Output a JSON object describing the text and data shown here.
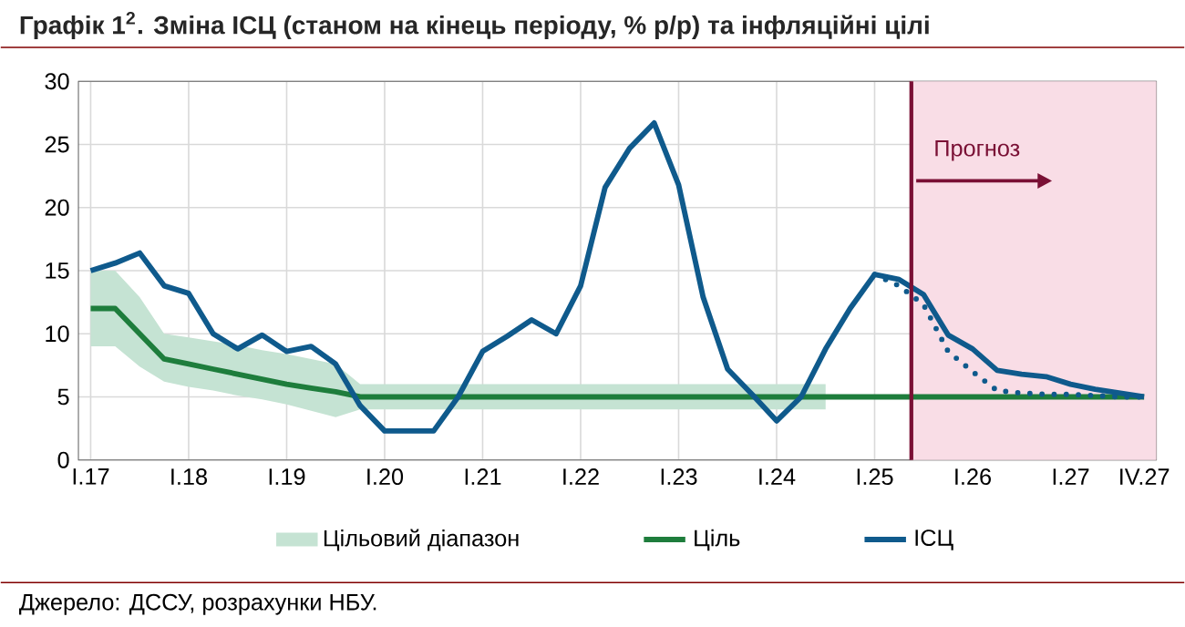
{
  "chart_data": {
    "type": "line",
    "title": "Графік 1$^{2}$. Зміна ІСЦ (станом на кінець періоду, % р/р) та інфляційні цілі",
    "categories": [
      "I.17",
      null,
      null,
      null,
      "I.18",
      null,
      null,
      null,
      "I.19",
      null,
      null,
      null,
      "I.20",
      null,
      null,
      null,
      "I.21",
      null,
      null,
      null,
      "I.22",
      null,
      null,
      null,
      "I.23",
      null,
      null,
      null,
      "I.24",
      null,
      null,
      null,
      "I.25",
      null,
      null,
      null,
      "I.26",
      null,
      null,
      null,
      "I.27",
      null,
      null,
      "IV.27"
    ],
    "ylim": [
      0,
      30
    ],
    "yticks": [
      0,
      5,
      10,
      15,
      20,
      25,
      30
    ],
    "grid": true,
    "legend": "bottom",
    "series": [
      {
        "name": "Ціль",
        "color": "#1e7d3c",
        "values": [
          12,
          12,
          10,
          8,
          7.6,
          7.2,
          6.8,
          6.4,
          6.0,
          5.7,
          5.4,
          5,
          5,
          5,
          5,
          5,
          5,
          5,
          5,
          5,
          5,
          5,
          5,
          5,
          5,
          5,
          5,
          5,
          5,
          5,
          5,
          5,
          5,
          5,
          5,
          5,
          5,
          5,
          5,
          5,
          5,
          5,
          5,
          5
        ],
        "upper": [
          15,
          15,
          12.9,
          10,
          9.7,
          9.4,
          9.1,
          8.7,
          8.4,
          8.0,
          7.6,
          6,
          6,
          6,
          6,
          6,
          6,
          6,
          6,
          6,
          6,
          6,
          6,
          6,
          6,
          6,
          6,
          6,
          6,
          6,
          6,
          null,
          null,
          null,
          null,
          null,
          null,
          null,
          null,
          null,
          null,
          null,
          null,
          null
        ],
        "lower": [
          9,
          9,
          7.4,
          6.2,
          5.8,
          5.5,
          5.1,
          4.8,
          4.4,
          3.9,
          3.4,
          4,
          4,
          4,
          4,
          4,
          4,
          4,
          4,
          4,
          4,
          4,
          4,
          4,
          4,
          4,
          4,
          4,
          4,
          4,
          4,
          null,
          null,
          null,
          null,
          null,
          null,
          null,
          null,
          null,
          null,
          null,
          null,
          null
        ]
      },
      {
        "name": "ІСЦ",
        "color": "#0f5a8c",
        "values": [
          15.0,
          15.6,
          16.4,
          13.8,
          13.2,
          10.0,
          8.8,
          9.9,
          8.6,
          9.0,
          7.6,
          4.3,
          2.3,
          2.3,
          2.3,
          5.0,
          8.6,
          9.8,
          11.1,
          10.0,
          13.8,
          21.6,
          24.7,
          26.7,
          21.8,
          12.9,
          7.2,
          5.2,
          3.1,
          5.0,
          8.8,
          12.0,
          14.7,
          14.3,
          13.1,
          9.9,
          8.8,
          7.1,
          6.8,
          6.6,
          6.0,
          5.6,
          5.3,
          5.0
        ]
      },
      {
        "line_style": "dotted",
        "color": "#0f5a8c",
        "values": [
          null,
          null,
          null,
          null,
          null,
          null,
          null,
          null,
          null,
          null,
          null,
          null,
          null,
          null,
          null,
          null,
          null,
          null,
          null,
          null,
          null,
          null,
          null,
          null,
          null,
          null,
          null,
          null,
          null,
          null,
          null,
          null,
          14.7,
          13.8,
          12.3,
          8.6,
          7.0,
          5.5,
          5.3,
          5.2,
          5.2,
          5.1,
          5.0,
          5.0
        ]
      }
    ],
    "annotations": [
      "Прогноз",
      "Цільовий діапазон",
      "Джерело: ДССУ, розрахунки НБУ."
    ]
  }
}
